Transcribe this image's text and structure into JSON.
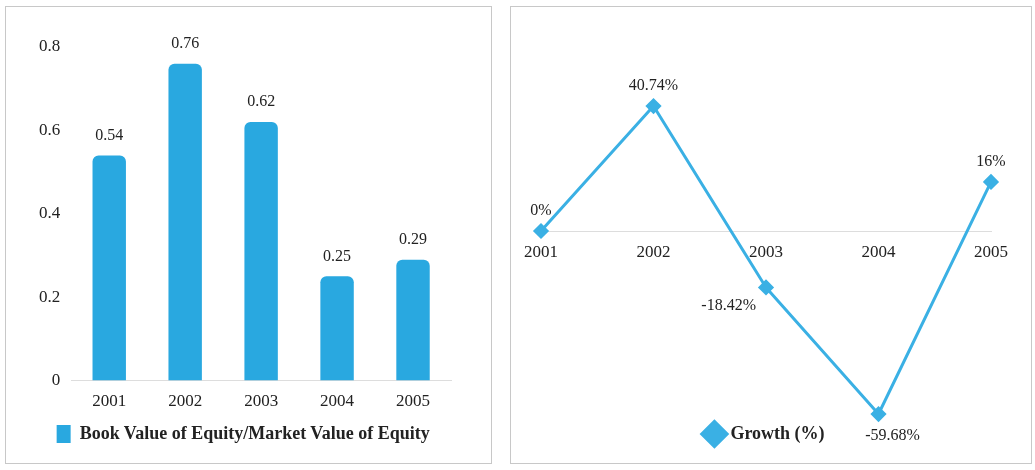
{
  "chart_data": [
    {
      "type": "bar",
      "categories": [
        "2001",
        "2002",
        "2003",
        "2004",
        "2005"
      ],
      "series": [
        {
          "name": "Book Value of Equity/Market Value of Equity",
          "color": "#29a8e0",
          "values": [
            0.54,
            0.76,
            0.62,
            0.25,
            0.29
          ]
        }
      ],
      "ylim": [
        0,
        0.8
      ],
      "yticks": [
        0,
        0.2,
        0.4,
        0.6,
        0.8
      ],
      "grid": false,
      "legend": "bottom",
      "data_labels": true
    },
    {
      "type": "line",
      "categories": [
        "2001",
        "2002",
        "2003",
        "2004",
        "2005"
      ],
      "series": [
        {
          "name": "Growth (%)",
          "color": "#3ab0e4",
          "values": [
            0,
            40.74,
            -18.42,
            -59.68,
            16
          ],
          "value_labels": [
            "0%",
            "40.74%",
            "-18.42%",
            "-59.68%",
            "16%"
          ]
        }
      ],
      "grid": false,
      "legend": "bottom",
      "marker": "diamond",
      "line_style": "solid",
      "tick_labels": "x"
    }
  ]
}
